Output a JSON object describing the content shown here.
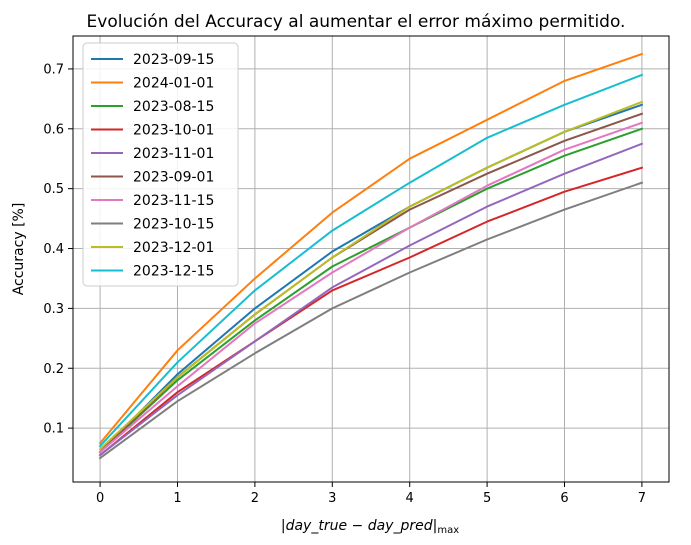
{
  "chart_data": {
    "type": "line",
    "title": "Evolución del Accuracy al aumentar el error máximo permitido.",
    "xlabel_parts": [
      "|",
      "day_true − day_pred",
      "|",
      "max"
    ],
    "ylabel": "Accuracy [%]",
    "x": [
      0,
      1,
      2,
      3,
      4,
      5,
      6,
      7
    ],
    "x_ticks": [
      "0",
      "1",
      "2",
      "3",
      "4",
      "5",
      "6",
      "7"
    ],
    "y_ticks": [
      "0.1",
      "0.2",
      "0.3",
      "0.4",
      "0.5",
      "0.6",
      "0.7"
    ],
    "xlim": [
      -0.35,
      7.35
    ],
    "ylim": [
      0.01,
      0.755
    ],
    "grid": true,
    "legend_position": "top-left",
    "series": [
      {
        "name": "2023-09-15",
        "color": "#1f77b4",
        "values": [
          0.06,
          0.19,
          0.3,
          0.395,
          0.47,
          0.535,
          0.595,
          0.64
        ]
      },
      {
        "name": "2024-01-01",
        "color": "#ff7f0e",
        "values": [
          0.075,
          0.23,
          0.35,
          0.46,
          0.55,
          0.615,
          0.68,
          0.725
        ]
      },
      {
        "name": "2023-08-15",
        "color": "#2ca02c",
        "values": [
          0.06,
          0.18,
          0.28,
          0.37,
          0.435,
          0.5,
          0.555,
          0.6
        ]
      },
      {
        "name": "2023-10-01",
        "color": "#d62728",
        "values": [
          0.055,
          0.16,
          0.245,
          0.33,
          0.385,
          0.445,
          0.495,
          0.535
        ]
      },
      {
        "name": "2023-11-01",
        "color": "#9467bd",
        "values": [
          0.055,
          0.155,
          0.245,
          0.335,
          0.405,
          0.47,
          0.525,
          0.575
        ]
      },
      {
        "name": "2023-09-01",
        "color": "#8c564b",
        "values": [
          0.06,
          0.185,
          0.29,
          0.385,
          0.465,
          0.525,
          0.58,
          0.625
        ]
      },
      {
        "name": "2023-11-15",
        "color": "#e377c2",
        "values": [
          0.06,
          0.17,
          0.275,
          0.36,
          0.435,
          0.505,
          0.565,
          0.61
        ]
      },
      {
        "name": "2023-10-15",
        "color": "#7f7f7f",
        "values": [
          0.05,
          0.145,
          0.225,
          0.3,
          0.36,
          0.415,
          0.465,
          0.51
        ]
      },
      {
        "name": "2023-12-01",
        "color": "#bcbd22",
        "values": [
          0.065,
          0.185,
          0.29,
          0.385,
          0.47,
          0.535,
          0.595,
          0.645
        ]
      },
      {
        "name": "2023-12-15",
        "color": "#17becf",
        "values": [
          0.07,
          0.21,
          0.33,
          0.43,
          0.51,
          0.585,
          0.64,
          0.69
        ]
      }
    ]
  }
}
